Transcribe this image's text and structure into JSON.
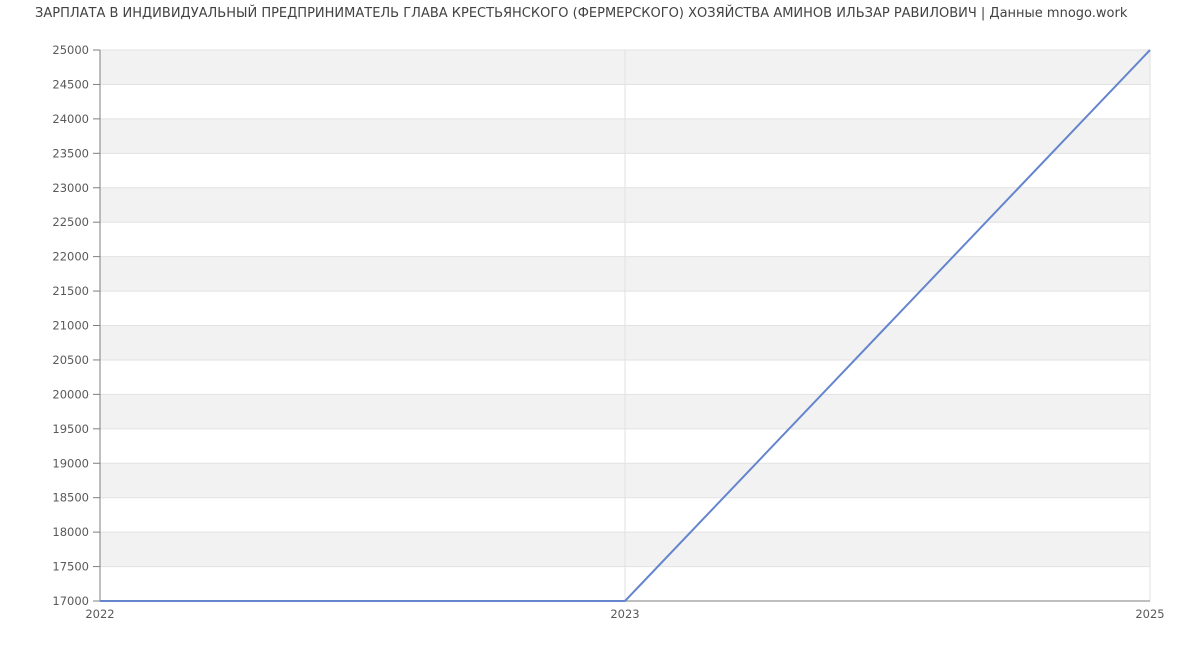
{
  "page": {
    "title": "ЗАРПЛАТА В ИНДИВИДУАЛЬНЫЙ ПРЕДПРИНИМАТЕЛЬ ГЛАВА КРЕСТЬЯНСКОГО (ФЕРМЕРСКОГО) ХОЗЯЙСТВА АМИНОВ ИЛЬЗАР РАВИЛОВИЧ | Данные mnogo.work"
  },
  "chart_data": {
    "type": "line",
    "title": "ЗАРПЛАТА В ИНДИВИДУАЛЬНЫЙ ПРЕДПРИНИМАТЕЛЬ ГЛАВА КРЕСТЬЯНСКОГО (ФЕРМЕРСКОГО) ХОЗЯЙСТВА АМИНОВ ИЛЬЗАР РАВИЛОВИЧ | Данные mnogo.work",
    "categories": [
      "2022",
      "2023",
      "2025"
    ],
    "series": [
      {
        "values": [
          17000,
          17000,
          25000
        ],
        "color": "#6585cd"
      }
    ],
    "xlabel": "",
    "ylabel": "",
    "ylim": [
      17000,
      25000
    ],
    "y_tick_step": 500,
    "y_tick_labels": [
      "17000",
      "17500",
      "18000",
      "18500",
      "19000",
      "19500",
      "20000",
      "20500",
      "21000",
      "21500",
      "22000",
      "22500",
      "23000",
      "23500",
      "24000",
      "24500",
      "25000"
    ],
    "grid": true,
    "legend": false,
    "striped_background": true,
    "colors": {
      "band_gray": "#f2f2f2",
      "band_white": "#ffffff",
      "gridline": "#e2e2e2",
      "axis": "#7f7f7f",
      "tick_label": "#595959",
      "title_text": "#424242",
      "line": "#6585cd"
    }
  }
}
